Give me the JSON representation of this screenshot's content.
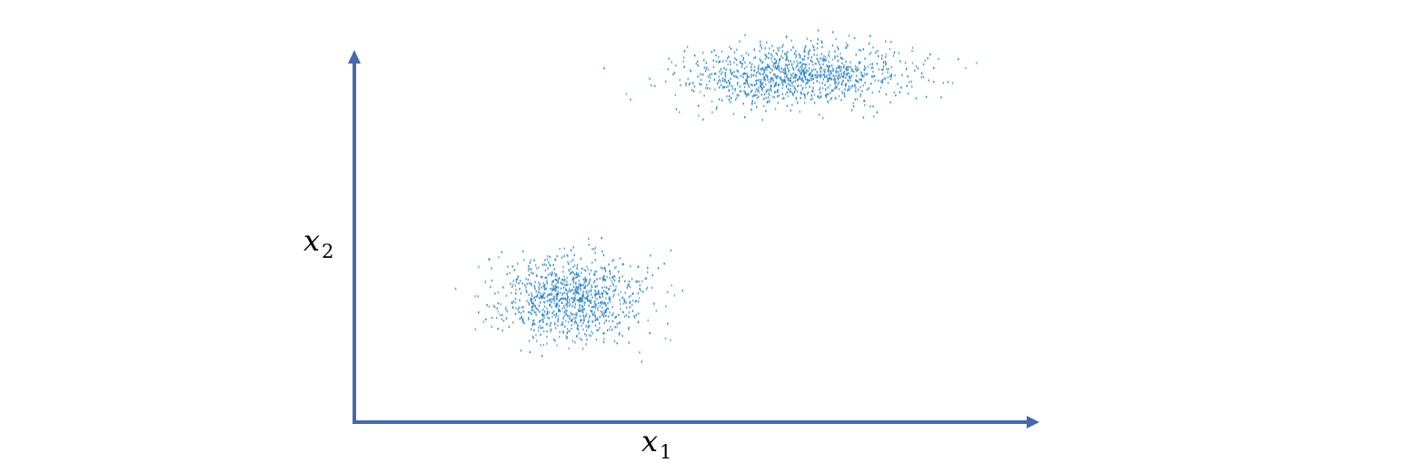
{
  "chart_data": {
    "type": "scatter",
    "title": "",
    "xlabel": {
      "base": "x",
      "sub": "1"
    },
    "ylabel": {
      "base": "x",
      "sub": "2"
    },
    "xlim": [
      0,
      10
    ],
    "ylim": [
      0,
      10
    ],
    "grid": false,
    "legend": "none",
    "axes_style": "arrows, no ticks",
    "clusters": [
      {
        "center": [
          6.6,
          8.6
        ],
        "spread": [
          1.65,
          0.75
        ],
        "count": 1100,
        "range_x": [
          2.9,
          10.0
        ],
        "range_y": [
          6.5,
          10.0
        ]
      },
      {
        "center": [
          3.2,
          3.05
        ],
        "spread": [
          1.1,
          1.05
        ],
        "count": 1000,
        "range_x": [
          0.7,
          6.4
        ],
        "range_y": [
          0.7,
          5.5
        ]
      }
    ],
    "colors": {
      "points": "#2E86C8",
      "axes": "#4A68A8"
    }
  }
}
